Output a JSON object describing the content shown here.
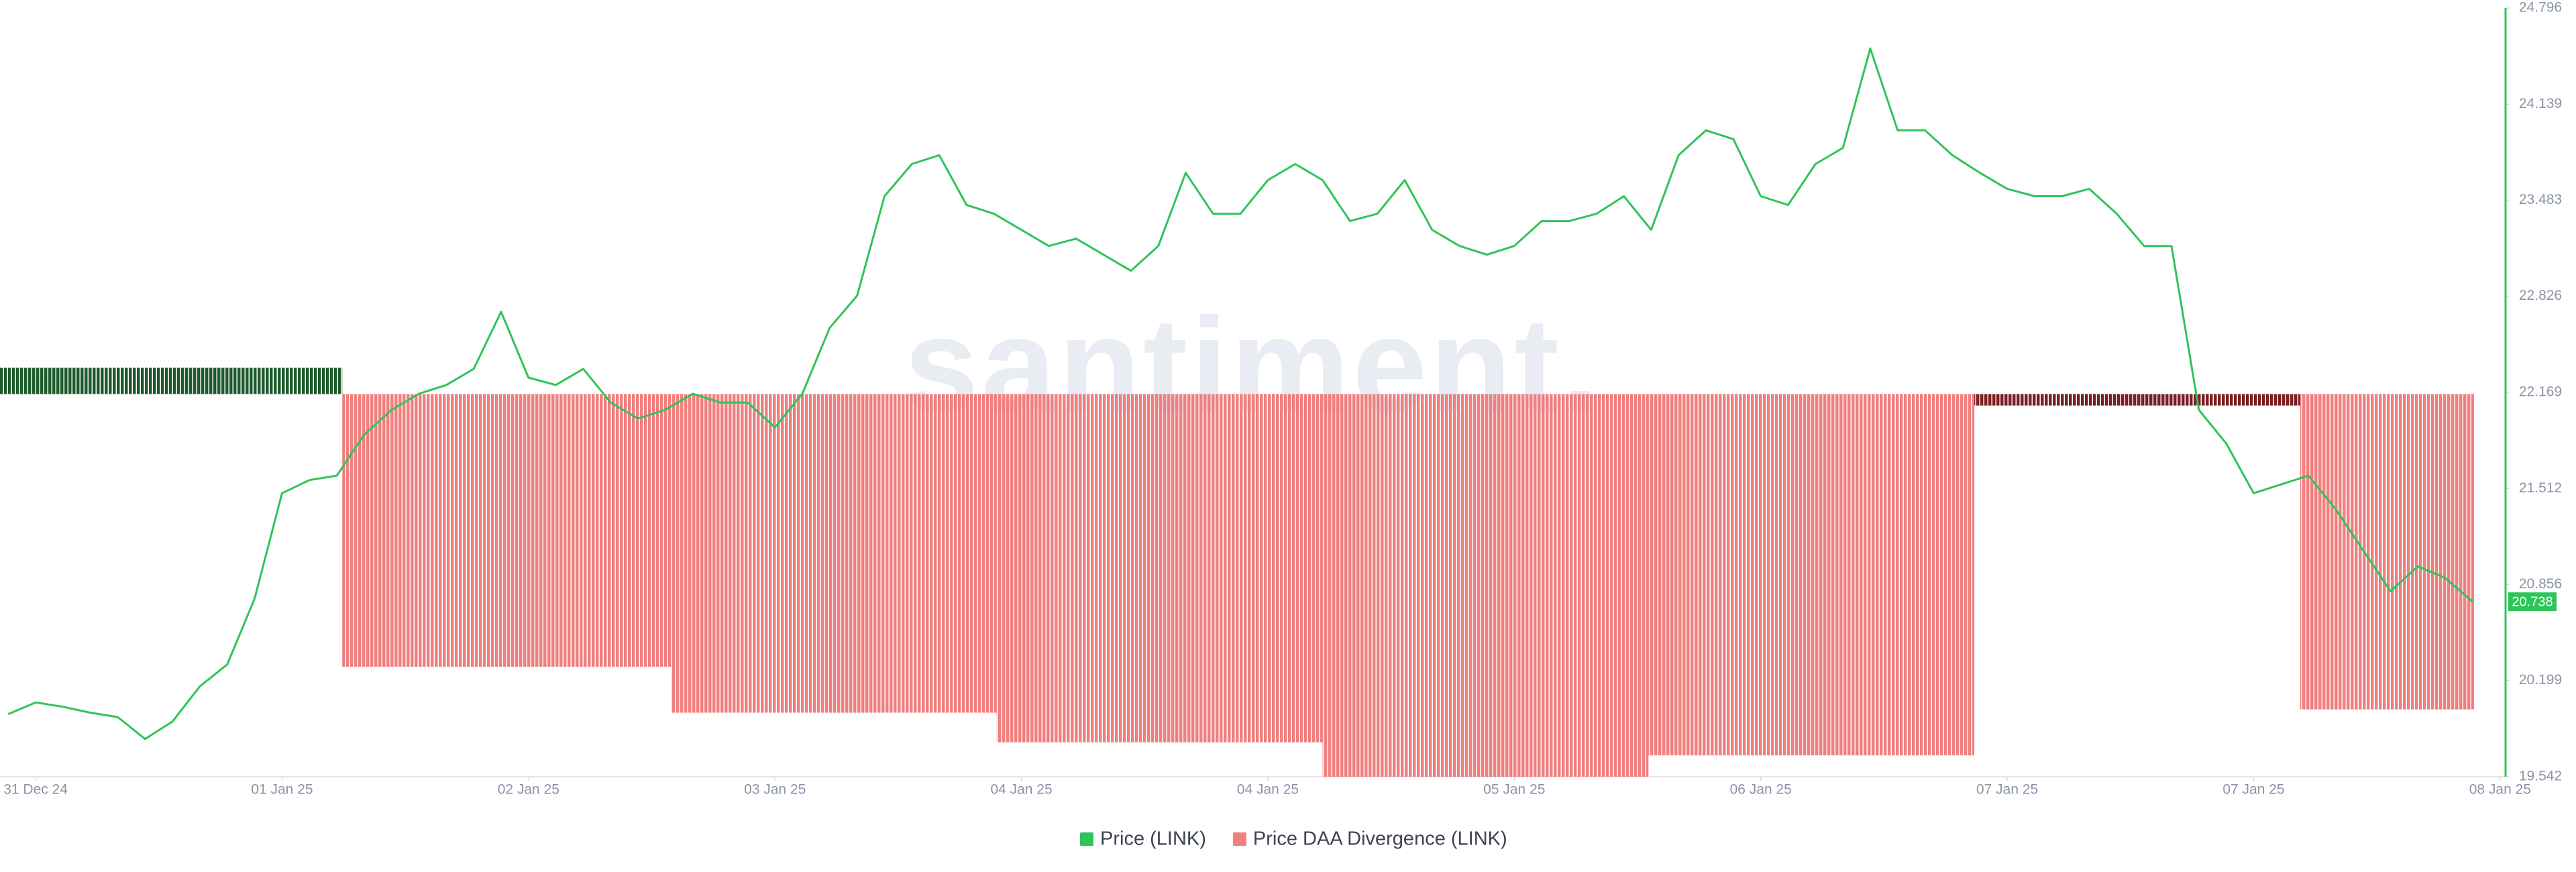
{
  "chart_data": {
    "type": "line",
    "watermark": "santiment.",
    "xlim": [
      0.4,
      183.4
    ],
    "xticks": [
      {
        "value": 3,
        "label": "31 Dec 24"
      },
      {
        "value": 21,
        "label": "01 Jan 25"
      },
      {
        "value": 39,
        "label": "02 Jan 25"
      },
      {
        "value": 57,
        "label": "03 Jan 25"
      },
      {
        "value": 75,
        "label": "04 Jan 25"
      },
      {
        "value": 93,
        "label": "04 Jan 25"
      },
      {
        "value": 111,
        "label": "05 Jan 25"
      },
      {
        "value": 129,
        "label": "06 Jan 25"
      },
      {
        "value": 147,
        "label": "07 Jan 25"
      },
      {
        "value": 165,
        "label": "07 Jan 25"
      },
      {
        "value": 183,
        "label": "08 Jan 25"
      }
    ],
    "ylim": [
      19.542,
      24.796
    ],
    "yticks": [
      19.542,
      20.199,
      20.856,
      21.512,
      22.169,
      22.826,
      23.483,
      24.139,
      24.796
    ],
    "y2lim": [
      -233,
      235
    ],
    "series": [
      {
        "name": "Price (LINK)",
        "type": "line",
        "color": "#2fc45a",
        "x": [
          1,
          3,
          5,
          7,
          9,
          11,
          13,
          15,
          17,
          19,
          21,
          23,
          25,
          27,
          29,
          31,
          33,
          35,
          37,
          39,
          41,
          43,
          45,
          47,
          49,
          51,
          53,
          55,
          57,
          59,
          61,
          63,
          65,
          67,
          69,
          71,
          73,
          75,
          77,
          79,
          81,
          83,
          85,
          87,
          89,
          91,
          93,
          95,
          97,
          99,
          101,
          103,
          105,
          107,
          109,
          111,
          113,
          115,
          117,
          119,
          121,
          123,
          125,
          127,
          129,
          131,
          133,
          135,
          137,
          139,
          141,
          143,
          145,
          147,
          149,
          151,
          153,
          155,
          157,
          159,
          161,
          163,
          165,
          167,
          169,
          171,
          173,
          175,
          177,
          179,
          181
        ],
        "values": [
          19.97,
          20.05,
          20.02,
          19.98,
          19.95,
          19.8,
          19.92,
          20.16,
          20.31,
          20.76,
          21.48,
          21.57,
          21.6,
          21.88,
          22.05,
          22.16,
          22.22,
          22.33,
          22.72,
          22.27,
          22.22,
          22.33,
          22.1,
          21.99,
          22.05,
          22.16,
          22.1,
          22.1,
          21.93,
          22.16,
          22.61,
          22.83,
          23.51,
          23.73,
          23.79,
          23.45,
          23.39,
          23.28,
          23.17,
          23.22,
          23.11,
          23.0,
          23.17,
          23.67,
          23.39,
          23.39,
          23.62,
          23.73,
          23.62,
          23.34,
          23.39,
          23.62,
          23.28,
          23.17,
          23.11,
          23.17,
          23.34,
          23.34,
          23.39,
          23.51,
          23.28,
          23.79,
          23.96,
          23.9,
          23.51,
          23.45,
          23.73,
          23.84,
          24.52,
          23.96,
          23.96,
          23.79,
          23.67,
          23.56,
          23.51,
          23.51,
          23.56,
          23.39,
          23.17,
          23.17,
          22.05,
          21.82,
          21.48,
          21.54,
          21.6,
          21.37,
          21.09,
          20.81,
          20.98,
          20.9,
          20.738
        ]
      },
      {
        "name": "Price DAA Divergence (LINK)",
        "type": "bar",
        "axis": "y2",
        "color": "#f07f7f",
        "bins": [
          0.4,
          25.4,
          49.4,
          73.2,
          97,
          120.8,
          144.6,
          168.4,
          181.1
        ],
        "values": [
          16,
          -166,
          -194,
          -212,
          -233,
          -220,
          -7,
          -192
        ],
        "colors": [
          "#1d5a2c",
          "#f07f7f",
          "#f07f7f",
          "#f07f7f",
          "#f07f7f",
          "#f07f7f",
          "#7a1f24",
          "#f07f7f"
        ]
      }
    ]
  }
}
